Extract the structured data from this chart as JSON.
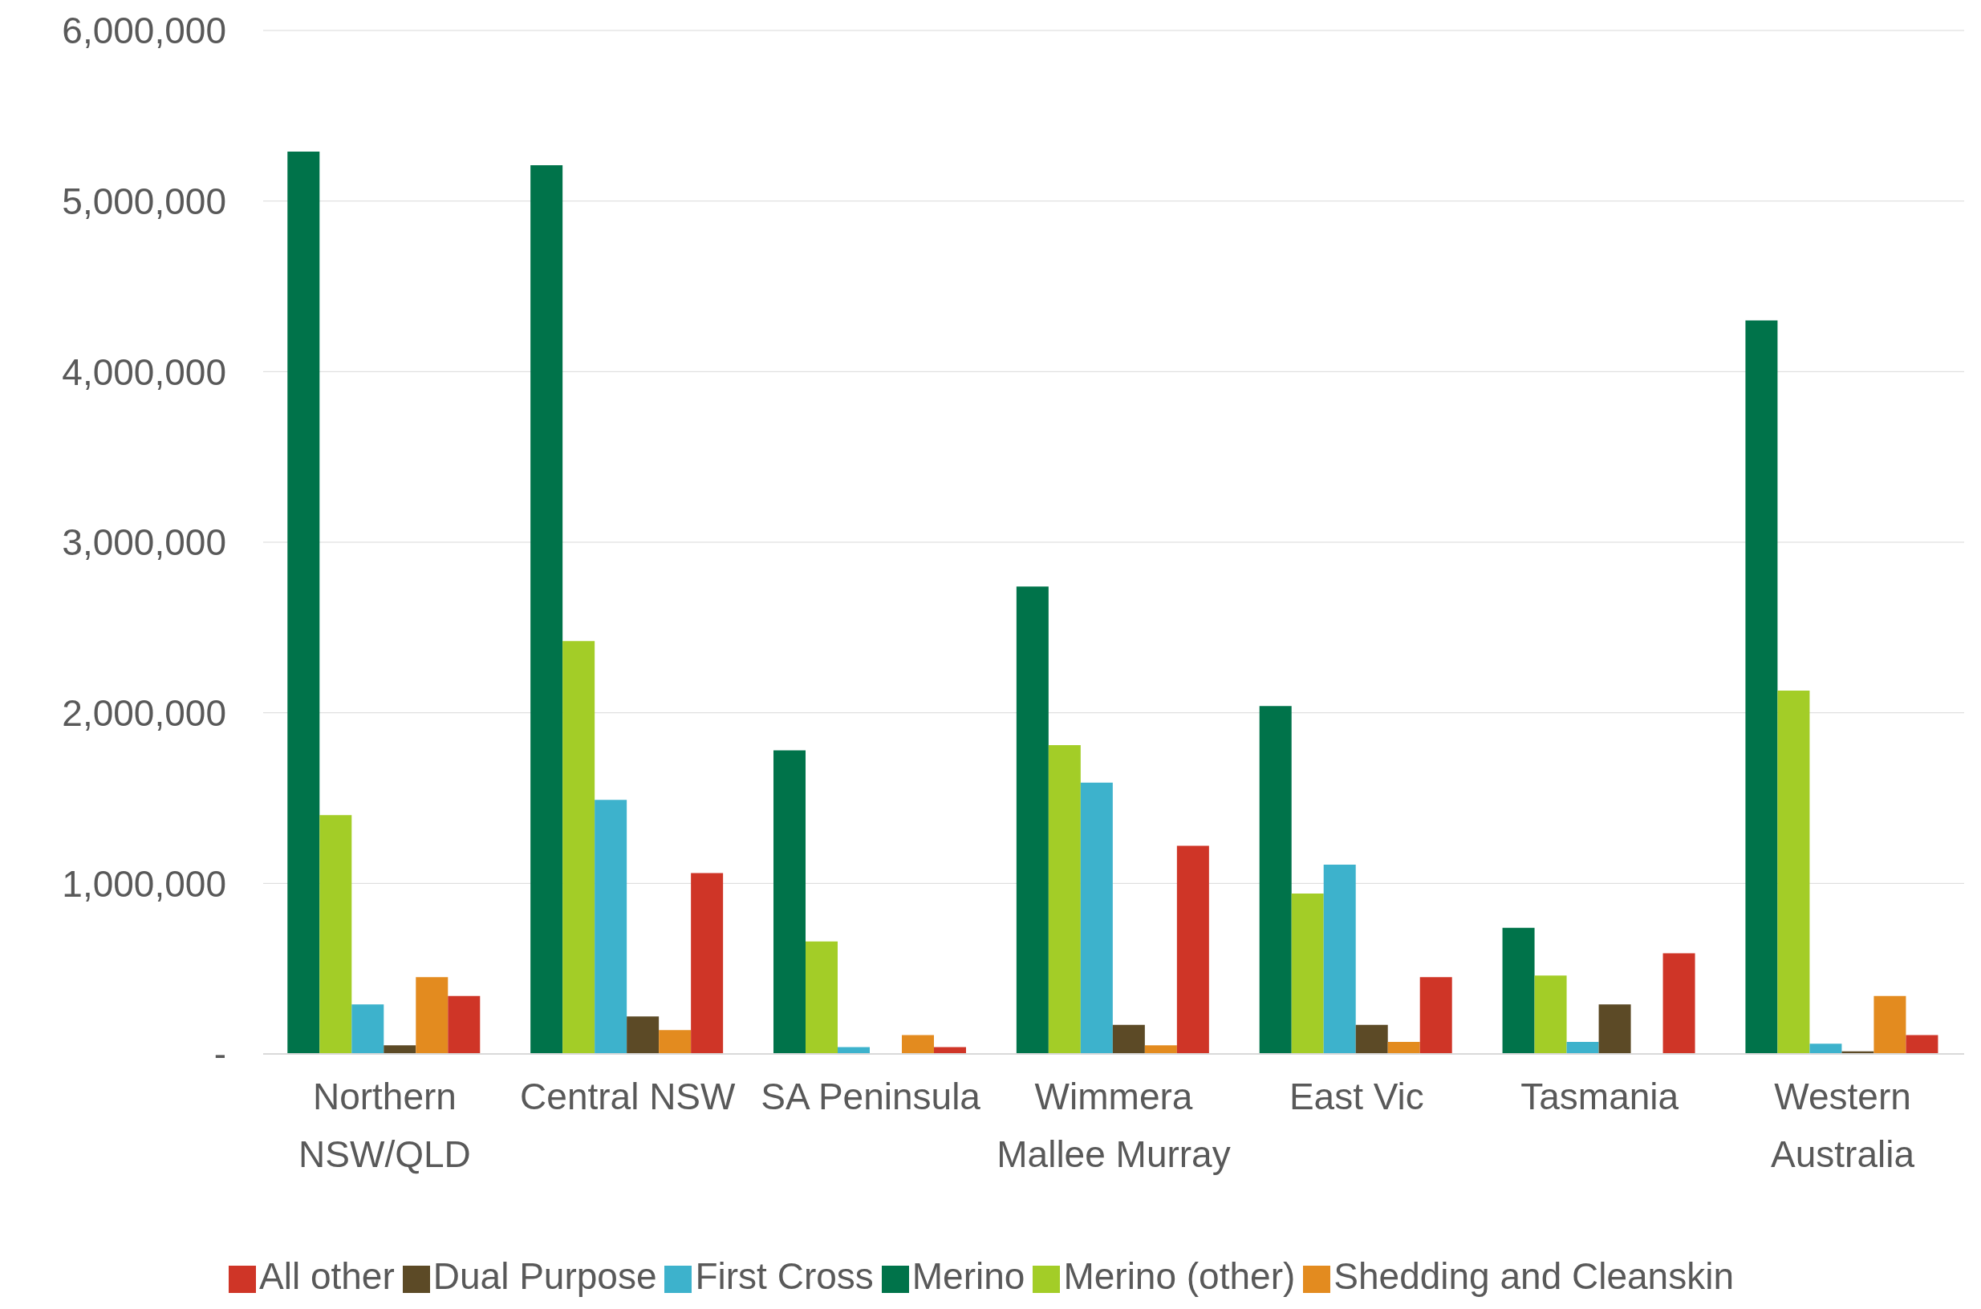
{
  "chart_data": {
    "type": "bar",
    "categories": [
      "Northern NSW/QLD",
      "Central NSW",
      "SA Peninsula",
      "Wimmera Mallee Murray",
      "East Vic",
      "Tasmania",
      "Western Australia"
    ],
    "series": [
      {
        "name": "Merino",
        "color": "#00734a",
        "values": [
          5290000,
          5210000,
          1780000,
          2740000,
          2040000,
          740000,
          4300000
        ]
      },
      {
        "name": "Merino (other)",
        "color": "#a3cd27",
        "values": [
          1400000,
          2420000,
          660000,
          1810000,
          940000,
          460000,
          2130000
        ]
      },
      {
        "name": "First Cross",
        "color": "#3db2cc",
        "values": [
          290000,
          1490000,
          40000,
          1590000,
          1110000,
          70000,
          60000
        ]
      },
      {
        "name": "Dual Purpose",
        "color": "#5c4a26",
        "values": [
          50000,
          220000,
          null,
          170000,
          170000,
          290000,
          15000
        ]
      },
      {
        "name": "Shedding and Cleanskin",
        "color": "#e38b1f",
        "values": [
          450000,
          140000,
          110000,
          50000,
          70000,
          null,
          340000
        ]
      },
      {
        "name": "All other",
        "color": "#cf3527",
        "values": [
          340000,
          1060000,
          40000,
          1220000,
          450000,
          590000,
          110000
        ]
      }
    ],
    "ylim": [
      0,
      6000000
    ],
    "yticks": [
      {
        "value": 0,
        "label": "-"
      },
      {
        "value": 1000000,
        "label": "1,000,000"
      },
      {
        "value": 2000000,
        "label": "2,000,000"
      },
      {
        "value": 3000000,
        "label": "3,000,000"
      },
      {
        "value": 4000000,
        "label": "4,000,000"
      },
      {
        "value": 5000000,
        "label": "5,000,000"
      },
      {
        "value": 6000000,
        "label": "6,000,000"
      }
    ],
    "grid": "y",
    "legend": "bottom"
  }
}
